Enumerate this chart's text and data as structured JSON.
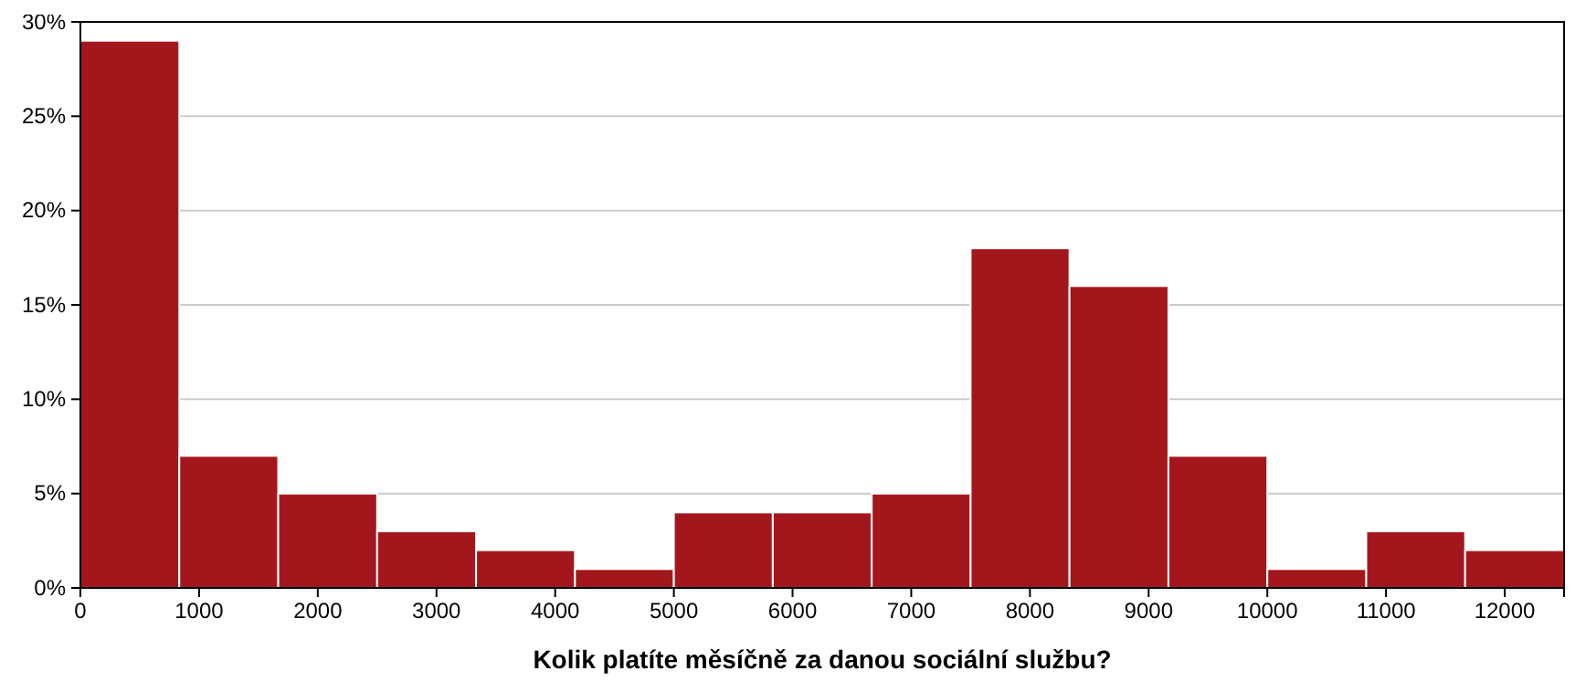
{
  "chart_data": {
    "type": "histogram",
    "xlabel": "Kolik platíte měsíčně za danou sociální službu?",
    "bins": [
      0,
      833.33,
      1666.67,
      2500,
      3333.33,
      4166.67,
      5000,
      5833.33,
      6666.67,
      7500,
      8333.33,
      9166.67,
      10000,
      10833.33,
      11666.67,
      12500
    ],
    "values": [
      29,
      7,
      5,
      3,
      2,
      1,
      4,
      4,
      5,
      18,
      16,
      7,
      1,
      3,
      2
    ],
    "color": "#a3171c",
    "xlim": [
      0,
      12500
    ],
    "xticks": [
      0,
      1000,
      2000,
      3000,
      4000,
      5000,
      6000,
      7000,
      8000,
      9000,
      10000,
      11000,
      12000
    ],
    "ylim": [
      0,
      30
    ],
    "yticks": [
      {
        "value": 0,
        "label": "0%"
      },
      {
        "value": 5,
        "label": "5%"
      },
      {
        "value": 10,
        "label": "10%"
      },
      {
        "value": 15,
        "label": "15%"
      },
      {
        "value": 20,
        "label": "20%"
      },
      {
        "value": 25,
        "label": "25%"
      },
      {
        "value": 30,
        "label": "30%"
      }
    ],
    "grid": "y"
  }
}
